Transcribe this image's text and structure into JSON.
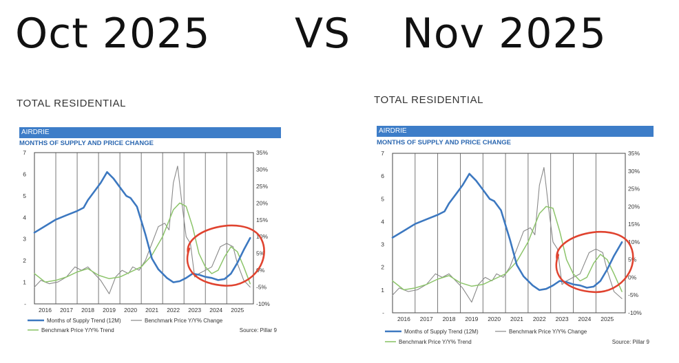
{
  "heading": {
    "left": "Oct 2025",
    "vs": "VS",
    "right": "Nov 2025"
  },
  "colors": {
    "supply": "#3c78c0",
    "benchmark": "#888888",
    "trend": "#8cc46a",
    "circle": "#e0432f",
    "bar": "#3d7dc8"
  },
  "panels": [
    {
      "section": "TOTAL RESIDENTIAL",
      "region": "AIRDRIE",
      "subtitle": "MONTHS OF SUPPLY AND PRICE CHANGE",
      "legend": {
        "supply": "Months of Supply Trend (12M)",
        "benchmark": "Benchmark Price Y/Y% Change",
        "trend": "Benchmark Price Y/Y% Trend"
      },
      "source": "Source: Pillar 9"
    },
    {
      "section": "TOTAL RESIDENTIAL",
      "region": "AIRDRIE",
      "subtitle": "MONTHS OF SUPPLY AND PRICE CHANGE",
      "legend": {
        "supply": "Months of Supply Trend (12M)",
        "benchmark": "Benchmark Price Y/Y% Change",
        "trend": "Benchmark Price Y/Y% Trend"
      },
      "source": "Source: Pillar 9"
    }
  ],
  "chart_data": [
    {
      "type": "line",
      "title": "MONTHS OF SUPPLY AND PRICE CHANGE",
      "x_start": 2015.5,
      "x_end": 2025.75,
      "x_ticks": [
        "2016",
        "2017",
        "2018",
        "2019",
        "2020",
        "2021",
        "2022",
        "2023",
        "2024",
        "2025"
      ],
      "y_left": {
        "ticks": [
          "-",
          "1",
          "2",
          "3",
          "4",
          "5",
          "6",
          "7"
        ],
        "range": [
          0,
          7
        ]
      },
      "y_right": {
        "ticks": [
          "-10%",
          "-5%",
          "0%",
          "5%",
          "10%",
          "15%",
          "20%",
          "25%",
          "30%",
          "35%"
        ],
        "range": [
          -10,
          35
        ]
      },
      "grid": "vertical lines at years",
      "series": [
        {
          "name": "Months of Supply Trend (12M)",
          "axis": "left",
          "x": [
            2015.5,
            2016,
            2016.5,
            2017,
            2017.5,
            2017.8,
            2018,
            2018.3,
            2018.6,
            2018.9,
            2019.2,
            2019.5,
            2019.8,
            2020,
            2020.3,
            2020.7,
            2021,
            2021.3,
            2021.7,
            2022,
            2022.3,
            2022.6,
            2022.9,
            2023.2,
            2023.5,
            2023.8,
            2024.1,
            2024.4,
            2024.7,
            2025,
            2025.3,
            2025.6
          ],
          "y": [
            3.3,
            3.6,
            3.9,
            4.1,
            4.3,
            4.45,
            4.8,
            5.2,
            5.6,
            6.1,
            5.8,
            5.4,
            5.0,
            4.9,
            4.5,
            3.2,
            2.1,
            1.6,
            1.2,
            1.0,
            1.05,
            1.2,
            1.4,
            1.35,
            1.25,
            1.2,
            1.1,
            1.15,
            1.4,
            1.9,
            2.5,
            3.05
          ]
        },
        {
          "name": "Benchmark Price Y/Y% Change",
          "axis": "right",
          "x": [
            2015.5,
            2015.8,
            2016.2,
            2016.6,
            2017,
            2017.4,
            2017.7,
            2018,
            2018.3,
            2018.6,
            2018.8,
            2019,
            2019.3,
            2019.6,
            2019.9,
            2020.1,
            2020.4,
            2020.7,
            2021,
            2021.3,
            2021.6,
            2021.8,
            2022,
            2022.2,
            2022.4,
            2022.6,
            2022.8,
            2023,
            2023.2,
            2023.5,
            2023.8,
            2024,
            2024.2,
            2024.5,
            2024.8,
            2025,
            2025.3,
            2025.6
          ],
          "y": [
            -5,
            -3,
            -4,
            -3.5,
            -2,
            1,
            0,
            1,
            -1,
            -3,
            -5,
            -7,
            -2,
            0,
            -1,
            1,
            0,
            3,
            8,
            13,
            14,
            12,
            26,
            31,
            20,
            10,
            8,
            -2,
            -1,
            0,
            1,
            4,
            7,
            8,
            7,
            2,
            -3,
            -5
          ]
        },
        {
          "name": "Benchmark Price Y/Y% Trend",
          "axis": "right",
          "x": [
            2015.5,
            2016,
            2016.5,
            2017,
            2017.5,
            2018,
            2018.5,
            2019,
            2019.5,
            2020,
            2020.5,
            2021,
            2021.5,
            2022,
            2022.3,
            2022.6,
            2022.9,
            2023.2,
            2023.5,
            2023.8,
            2024.1,
            2024.4,
            2024.7,
            2025,
            2025.3,
            2025.6
          ],
          "y": [
            -1,
            -3.5,
            -3,
            -2,
            -0.5,
            0.5,
            -1.5,
            -2.5,
            -2,
            -0.5,
            1,
            4.5,
            10,
            18,
            20,
            19,
            13,
            5,
            1,
            -1,
            0,
            4,
            7,
            5.5,
            1,
            -4
          ]
        }
      ],
      "annotation": "red hand-drawn circle around recent trend"
    },
    {
      "type": "line",
      "title": "MONTHS OF SUPPLY AND PRICE CHANGE",
      "x_start": 2015.5,
      "x_end": 2025.8,
      "x_ticks": [
        "2016",
        "2017",
        "2018",
        "2019",
        "2020",
        "2021",
        "2022",
        "2023",
        "2024",
        "2025"
      ],
      "y_left": {
        "ticks": [
          "-",
          "1",
          "2",
          "3",
          "4",
          "5",
          "6",
          "7"
        ],
        "range": [
          0,
          7
        ]
      },
      "y_right": {
        "ticks": [
          "-10%",
          "-5%",
          "0%",
          "5%",
          "10%",
          "15%",
          "20%",
          "25%",
          "30%",
          "35%"
        ],
        "range": [
          -10,
          35
        ]
      },
      "grid": "vertical lines at years",
      "series": [
        {
          "name": "Months of Supply Trend (12M)",
          "axis": "left",
          "x": [
            2015.5,
            2016,
            2016.5,
            2017,
            2017.5,
            2017.8,
            2018,
            2018.3,
            2018.6,
            2018.9,
            2019.2,
            2019.5,
            2019.8,
            2020,
            2020.3,
            2020.7,
            2021,
            2021.3,
            2021.7,
            2022,
            2022.3,
            2022.6,
            2022.9,
            2023.2,
            2023.5,
            2023.8,
            2024.1,
            2024.4,
            2024.7,
            2025,
            2025.3,
            2025.65
          ],
          "y": [
            3.3,
            3.6,
            3.9,
            4.1,
            4.3,
            4.45,
            4.8,
            5.2,
            5.6,
            6.1,
            5.8,
            5.4,
            5.0,
            4.9,
            4.5,
            3.2,
            2.1,
            1.6,
            1.2,
            1.0,
            1.05,
            1.2,
            1.4,
            1.35,
            1.25,
            1.2,
            1.1,
            1.15,
            1.4,
            1.9,
            2.5,
            3.1
          ]
        },
        {
          "name": "Benchmark Price Y/Y% Change",
          "axis": "right",
          "x": [
            2015.5,
            2015.8,
            2016.2,
            2016.6,
            2017,
            2017.4,
            2017.7,
            2018,
            2018.3,
            2018.6,
            2018.8,
            2019,
            2019.3,
            2019.6,
            2019.9,
            2020.1,
            2020.4,
            2020.7,
            2021,
            2021.3,
            2021.6,
            2021.8,
            2022,
            2022.2,
            2022.4,
            2022.6,
            2022.8,
            2023,
            2023.2,
            2023.5,
            2023.8,
            2024,
            2024.2,
            2024.5,
            2024.8,
            2025,
            2025.3,
            2025.65
          ],
          "y": [
            -5,
            -3,
            -4,
            -3.5,
            -2,
            1,
            0,
            1,
            -1,
            -3,
            -5,
            -7,
            -2,
            0,
            -1,
            1,
            0,
            3,
            8,
            13,
            14,
            12,
            26,
            31,
            20,
            10,
            8,
            -2,
            -1,
            0,
            1,
            4,
            7,
            8,
            7,
            2,
            -4,
            -6
          ]
        },
        {
          "name": "Benchmark Price Y/Y% Trend",
          "axis": "right",
          "x": [
            2015.5,
            2016,
            2016.5,
            2017,
            2017.5,
            2018,
            2018.5,
            2019,
            2019.5,
            2020,
            2020.5,
            2021,
            2021.5,
            2022,
            2022.3,
            2022.6,
            2022.9,
            2023.2,
            2023.5,
            2023.8,
            2024.1,
            2024.4,
            2024.7,
            2025,
            2025.3,
            2025.65
          ],
          "y": [
            -1,
            -3.5,
            -3,
            -2,
            -0.5,
            0.5,
            -1.5,
            -2.5,
            -2,
            -0.5,
            1,
            4.5,
            10,
            18,
            20,
            19.5,
            13,
            5,
            1,
            -1,
            0,
            4,
            6.5,
            5,
            1,
            -4
          ]
        }
      ],
      "annotation": "red hand-drawn circle around recent trend"
    }
  ]
}
